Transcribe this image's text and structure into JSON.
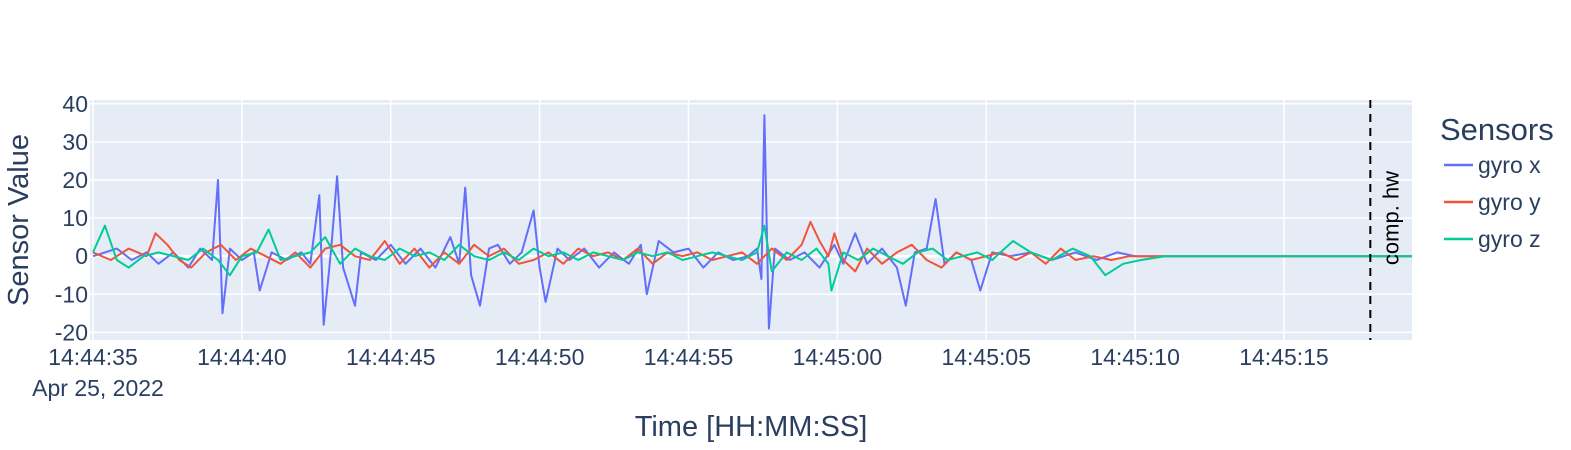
{
  "chart_data": {
    "type": "line",
    "xlabel": "Time [HH:MM:SS]",
    "ylabel": "Sensor Value",
    "date_label": "Apr 25, 2022",
    "x_ticks": [
      "14:44:35",
      "14:44:40",
      "14:44:45",
      "14:44:50",
      "14:44:55",
      "14:45:00",
      "14:45:05",
      "14:45:10",
      "14:45:15"
    ],
    "x_range": [
      "14:44:34.9",
      "14:45:19.3"
    ],
    "ylim": [
      -22,
      41
    ],
    "y_ticks": [
      40,
      30,
      20,
      10,
      0,
      -10,
      -20
    ],
    "grid": true,
    "legend": {
      "title": "Sensors",
      "position": "right"
    },
    "annotation": {
      "label": "comp. hw",
      "x": "14:45:17.9",
      "style": "dashed vertical line"
    },
    "series": [
      {
        "name": "gyro x",
        "color": "#636efa",
        "points": [
          [
            "14:44:35.0",
            0
          ],
          [
            "14:44:35.4",
            1
          ],
          [
            "14:44:35.8",
            2
          ],
          [
            "14:44:36.3",
            -1
          ],
          [
            "14:44:36.8",
            1
          ],
          [
            "14:44:37.2",
            -2
          ],
          [
            "14:44:37.7",
            1
          ],
          [
            "14:44:38.2",
            -3
          ],
          [
            "14:44:38.6",
            2
          ],
          [
            "14:44:39.0",
            -1
          ],
          [
            "14:44:39.2",
            20
          ],
          [
            "14:44:39.35",
            -15
          ],
          [
            "14:44:39.6",
            2
          ],
          [
            "14:44:40.0",
            -1
          ],
          [
            "14:44:40.4",
            1
          ],
          [
            "14:44:40.6",
            -9
          ],
          [
            "14:44:41.0",
            1
          ],
          [
            "14:44:41.5",
            -1
          ],
          [
            "14:44:42.0",
            1
          ],
          [
            "14:44:42.3",
            -2
          ],
          [
            "14:44:42.6",
            16
          ],
          [
            "14:44:42.75",
            -18
          ],
          [
            "14:44:43.0",
            2
          ],
          [
            "14:44:43.2",
            21
          ],
          [
            "14:44:43.4",
            -3
          ],
          [
            "14:44:43.8",
            -13
          ],
          [
            "14:44:44.0",
            1
          ],
          [
            "14:44:44.5",
            -1
          ],
          [
            "14:44:45.0",
            3
          ],
          [
            "14:44:45.5",
            -2
          ],
          [
            "14:44:46.0",
            2
          ],
          [
            "14:44:46.5",
            -3
          ],
          [
            "14:44:47.0",
            5
          ],
          [
            "14:44:47.3",
            -2
          ],
          [
            "14:44:47.5",
            18
          ],
          [
            "14:44:47.7",
            -5
          ],
          [
            "14:44:48.0",
            -13
          ],
          [
            "14:44:48.3",
            2
          ],
          [
            "14:44:48.6",
            3
          ],
          [
            "14:44:49.0",
            -2
          ],
          [
            "14:44:49.4",
            1
          ],
          [
            "14:44:49.8",
            12
          ],
          [
            "14:44:50.0",
            -3
          ],
          [
            "14:44:50.2",
            -12
          ],
          [
            "14:44:50.6",
            2
          ],
          [
            "14:44:51.0",
            -1
          ],
          [
            "14:44:51.5",
            2
          ],
          [
            "14:44:52.0",
            -3
          ],
          [
            "14:44:52.5",
            1
          ],
          [
            "14:44:53.0",
            -2
          ],
          [
            "14:44:53.4",
            3
          ],
          [
            "14:44:53.6",
            -10
          ],
          [
            "14:44:54.0",
            4
          ],
          [
            "14:44:54.5",
            1
          ],
          [
            "14:44:55.0",
            2
          ],
          [
            "14:44:55.5",
            -3
          ],
          [
            "14:44:56.0",
            1
          ],
          [
            "14:44:56.5",
            -1
          ],
          [
            "14:44:57.0",
            0
          ],
          [
            "14:44:57.3",
            2
          ],
          [
            "14:44:57.45",
            -6
          ],
          [
            "14:44:57.55",
            37
          ],
          [
            "14:44:57.7",
            -19
          ],
          [
            "14:44:57.9",
            2
          ],
          [
            "14:44:58.4",
            -1
          ],
          [
            "14:44:58.9",
            1
          ],
          [
            "14:44:59.4",
            -3
          ],
          [
            "14:44:59.9",
            3
          ],
          [
            "14:45:00.2",
            -2
          ],
          [
            "14:45:00.6",
            6
          ],
          [
            "14:45:01.0",
            -2
          ],
          [
            "14:45:01.5",
            2
          ],
          [
            "14:45:02.0",
            -3
          ],
          [
            "14:45:02.3",
            -13
          ],
          [
            "14:45:02.6",
            1
          ],
          [
            "14:45:03.0",
            2
          ],
          [
            "14:45:03.3",
            15
          ],
          [
            "14:45:03.6",
            -2
          ],
          [
            "14:45:04.0",
            1
          ],
          [
            "14:45:04.5",
            -1
          ],
          [
            "14:45:04.8",
            -9
          ],
          [
            "14:45:05.2",
            1
          ],
          [
            "14:45:05.8",
            0
          ],
          [
            "14:45:06.5",
            1
          ],
          [
            "14:45:07.2",
            -1
          ],
          [
            "14:45:08.0",
            1
          ],
          [
            "14:45:08.7",
            -1
          ],
          [
            "14:45:09.4",
            1
          ],
          [
            "14:45:10.0",
            0
          ],
          [
            "14:45:11.0",
            0
          ],
          [
            "14:45:12.0",
            0
          ],
          [
            "14:45:14.0",
            0
          ],
          [
            "14:45:17.0",
            0
          ],
          [
            "14:45:19.3",
            0
          ]
        ]
      },
      {
        "name": "gyro y",
        "color": "#ef553b",
        "points": [
          [
            "14:44:35.0",
            1
          ],
          [
            "14:44:35.6",
            -1
          ],
          [
            "14:44:36.2",
            2
          ],
          [
            "14:44:36.8",
            0
          ],
          [
            "14:44:37.1",
            6
          ],
          [
            "14:44:37.5",
            3
          ],
          [
            "14:44:37.9",
            -1
          ],
          [
            "14:44:38.3",
            -3
          ],
          [
            "14:44:38.8",
            1
          ],
          [
            "14:44:39.3",
            3
          ],
          [
            "14:44:39.8",
            -1
          ],
          [
            "14:44:40.3",
            2
          ],
          [
            "14:44:40.8",
            0
          ],
          [
            "14:44:41.3",
            -2
          ],
          [
            "14:44:41.8",
            1
          ],
          [
            "14:44:42.3",
            -3
          ],
          [
            "14:44:42.8",
            2
          ],
          [
            "14:44:43.3",
            3
          ],
          [
            "14:44:43.8",
            0
          ],
          [
            "14:44:44.3",
            -1
          ],
          [
            "14:44:44.8",
            4
          ],
          [
            "14:44:45.3",
            -2
          ],
          [
            "14:44:45.8",
            2
          ],
          [
            "14:44:46.3",
            -3
          ],
          [
            "14:44:46.8",
            1
          ],
          [
            "14:44:47.3",
            -2
          ],
          [
            "14:44:47.8",
            3
          ],
          [
            "14:44:48.3",
            0
          ],
          [
            "14:44:48.8",
            2
          ],
          [
            "14:44:49.3",
            -2
          ],
          [
            "14:44:49.8",
            -1
          ],
          [
            "14:44:50.3",
            1
          ],
          [
            "14:44:50.8",
            -2
          ],
          [
            "14:44:51.3",
            2
          ],
          [
            "14:44:51.8",
            0
          ],
          [
            "14:44:52.3",
            1
          ],
          [
            "14:44:52.8",
            -1
          ],
          [
            "14:44:53.3",
            2
          ],
          [
            "14:44:53.8",
            -2
          ],
          [
            "14:44:54.3",
            1
          ],
          [
            "14:44:54.8",
            0
          ],
          [
            "14:44:55.3",
            1
          ],
          [
            "14:44:55.8",
            -1
          ],
          [
            "14:44:56.3",
            0
          ],
          [
            "14:44:56.8",
            1
          ],
          [
            "14:44:57.3",
            -2
          ],
          [
            "14:44:57.8",
            2
          ],
          [
            "14:44:58.3",
            -1
          ],
          [
            "14:44:58.8",
            3
          ],
          [
            "14:44:59.1",
            9
          ],
          [
            "14:44:59.4",
            4
          ],
          [
            "14:44:59.7",
            0
          ],
          [
            "14:44:59.9",
            6
          ],
          [
            "14:45:00.2",
            -1
          ],
          [
            "14:45:00.6",
            -4
          ],
          [
            "14:45:01.0",
            2
          ],
          [
            "14:45:01.5",
            -2
          ],
          [
            "14:45:02.0",
            1
          ],
          [
            "14:45:02.5",
            3
          ],
          [
            "14:45:03.0",
            -1
          ],
          [
            "14:45:03.5",
            -3
          ],
          [
            "14:45:04.0",
            1
          ],
          [
            "14:45:04.5",
            -1
          ],
          [
            "14:45:05.0",
            0
          ],
          [
            "14:45:05.5",
            1
          ],
          [
            "14:45:06.0",
            -1
          ],
          [
            "14:45:06.5",
            1
          ],
          [
            "14:45:07.0",
            -2
          ],
          [
            "14:45:07.5",
            2
          ],
          [
            "14:45:08.0",
            -1
          ],
          [
            "14:45:08.6",
            0
          ],
          [
            "14:45:09.2",
            -1
          ],
          [
            "14:45:09.8",
            0
          ],
          [
            "14:45:11.0",
            0
          ],
          [
            "14:45:13.0",
            0
          ],
          [
            "14:45:16.0",
            0
          ],
          [
            "14:45:19.3",
            0
          ]
        ]
      },
      {
        "name": "gyro z",
        "color": "#00cc96",
        "points": [
          [
            "14:44:35.0",
            1
          ],
          [
            "14:44:35.4",
            8
          ],
          [
            "14:44:35.8",
            -1
          ],
          [
            "14:44:36.2",
            -3
          ],
          [
            "14:44:36.7",
            0
          ],
          [
            "14:44:37.2",
            1
          ],
          [
            "14:44:37.7",
            0
          ],
          [
            "14:44:38.2",
            -1
          ],
          [
            "14:44:38.7",
            2
          ],
          [
            "14:44:39.2",
            -1
          ],
          [
            "14:44:39.6",
            -5
          ],
          [
            "14:44:40.0",
            0
          ],
          [
            "14:44:40.5",
            1
          ],
          [
            "14:44:40.9",
            7
          ],
          [
            "14:44:41.3",
            -1
          ],
          [
            "14:44:41.8",
            0
          ],
          [
            "14:44:42.3",
            1
          ],
          [
            "14:44:42.8",
            5
          ],
          [
            "14:44:43.3",
            -2
          ],
          [
            "14:44:43.8",
            2
          ],
          [
            "14:44:44.3",
            0
          ],
          [
            "14:44:44.8",
            -1
          ],
          [
            "14:44:45.3",
            2
          ],
          [
            "14:44:45.8",
            0
          ],
          [
            "14:44:46.3",
            1
          ],
          [
            "14:44:46.8",
            -1
          ],
          [
            "14:44:47.3",
            3
          ],
          [
            "14:44:47.8",
            0
          ],
          [
            "14:44:48.3",
            -1
          ],
          [
            "14:44:48.8",
            1
          ],
          [
            "14:44:49.3",
            -1
          ],
          [
            "14:44:49.8",
            2
          ],
          [
            "14:44:50.3",
            0
          ],
          [
            "14:44:50.8",
            1
          ],
          [
            "14:44:51.3",
            -1
          ],
          [
            "14:44:51.8",
            1
          ],
          [
            "14:44:52.3",
            0
          ],
          [
            "14:44:52.8",
            -1
          ],
          [
            "14:44:53.3",
            1
          ],
          [
            "14:44:53.8",
            0
          ],
          [
            "14:44:54.3",
            1
          ],
          [
            "14:44:54.8",
            -1
          ],
          [
            "14:44:55.3",
            0
          ],
          [
            "14:44:55.8",
            1
          ],
          [
            "14:44:56.3",
            0
          ],
          [
            "14:44:56.8",
            -1
          ],
          [
            "14:44:57.3",
            1
          ],
          [
            "14:44:57.55",
            8
          ],
          [
            "14:44:57.8",
            -4
          ],
          [
            "14:44:58.3",
            1
          ],
          [
            "14:44:58.8",
            -1
          ],
          [
            "14:44:59.3",
            2
          ],
          [
            "14:44:59.7",
            -2
          ],
          [
            "14:44:59.8",
            -9
          ],
          [
            "14:45:00.2",
            1
          ],
          [
            "14:45:00.7",
            -1
          ],
          [
            "14:45:01.2",
            2
          ],
          [
            "14:45:01.7",
            0
          ],
          [
            "14:45:02.2",
            -2
          ],
          [
            "14:45:02.7",
            1
          ],
          [
            "14:45:03.2",
            2
          ],
          [
            "14:45:03.7",
            -1
          ],
          [
            "14:45:04.2",
            0
          ],
          [
            "14:45:04.7",
            1
          ],
          [
            "14:45:05.2",
            -1
          ],
          [
            "14:45:05.9",
            4
          ],
          [
            "14:45:06.5",
            1
          ],
          [
            "14:45:07.2",
            -1
          ],
          [
            "14:45:07.9",
            2
          ],
          [
            "14:45:08.5",
            0
          ],
          [
            "14:45:09.0",
            -5
          ],
          [
            "14:45:09.6",
            -2
          ],
          [
            "14:45:10.2",
            -1
          ],
          [
            "14:45:11.0",
            0
          ],
          [
            "14:45:13.0",
            0
          ],
          [
            "14:45:16.0",
            0
          ],
          [
            "14:45:19.3",
            0
          ]
        ]
      }
    ]
  }
}
